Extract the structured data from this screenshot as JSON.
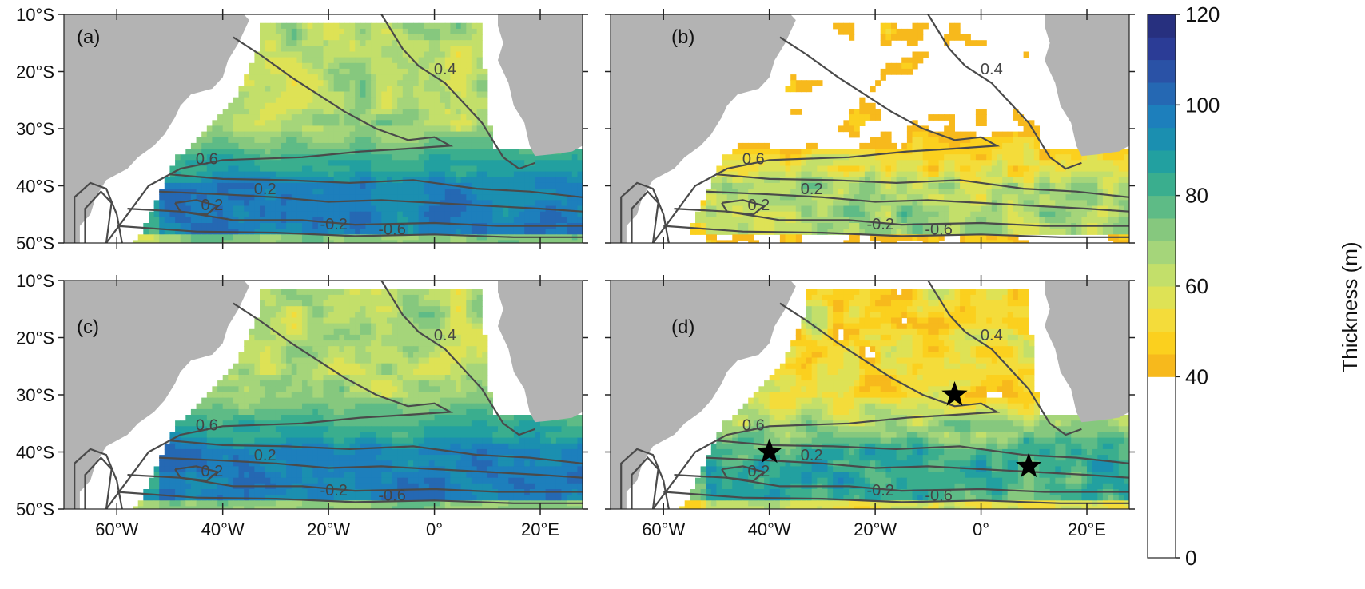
{
  "chart_data": {
    "type": "heatmap",
    "description_units": "Thickness (m)",
    "x_ticks": [
      "60°W",
      "40°W",
      "20°W",
      "0°",
      "20°E"
    ],
    "x_tick_values": [
      -60,
      -40,
      -20,
      0,
      20
    ],
    "y_ticks": [
      "10°S",
      "20°S",
      "30°S",
      "40°S",
      "50°S"
    ],
    "y_tick_values": [
      -10,
      -20,
      -30,
      -40,
      -50
    ],
    "xlim": [
      -70,
      28
    ],
    "ylim": [
      -50,
      -10
    ],
    "colorbar": {
      "label": "Thickness (m)",
      "ticks": [
        "0",
        "40",
        "60",
        "80",
        "100",
        "120"
      ],
      "tick_values": [
        0,
        40,
        60,
        80,
        100,
        120
      ],
      "range": [
        0,
        120
      ],
      "colors": [
        "#f7b91c",
        "#fbd01e",
        "#f4dc3a",
        "#dee255",
        "#c3df6a",
        "#a5d57a",
        "#86c87e",
        "#5ebb86",
        "#3aae8e",
        "#22a0a0",
        "#1b8fb0",
        "#1d7fbc",
        "#2568b3",
        "#2a52a6",
        "#2b3c96",
        "#27307f"
      ]
    },
    "panels": [
      {
        "label": "(a)",
        "contour_labels": [
          "0.4",
          "0.6",
          "0.2",
          "0.2",
          "-0.2",
          "-0.6"
        ]
      },
      {
        "label": "(b)",
        "contour_labels": [
          "0.4",
          "0.6",
          "0.2",
          "0.2",
          "-0.2",
          "-0.6"
        ]
      },
      {
        "label": "(c)",
        "contour_labels": [
          "0.4",
          "0.6",
          "0.2",
          "0.2",
          "-0.2",
          "-0.6"
        ]
      },
      {
        "label": "(d)",
        "contour_labels": [
          "0.4",
          "0.6",
          "0.2",
          "0.2",
          "-0.2",
          "-0.6"
        ],
        "stars": [
          {
            "lon": -5,
            "lat": -30
          },
          {
            "lon": -40,
            "lat": -40
          },
          {
            "lon": 9,
            "lat": -42.5
          }
        ]
      }
    ]
  },
  "colors": {
    "land": "#b3b3b3",
    "contour": "#4a4a4a"
  }
}
